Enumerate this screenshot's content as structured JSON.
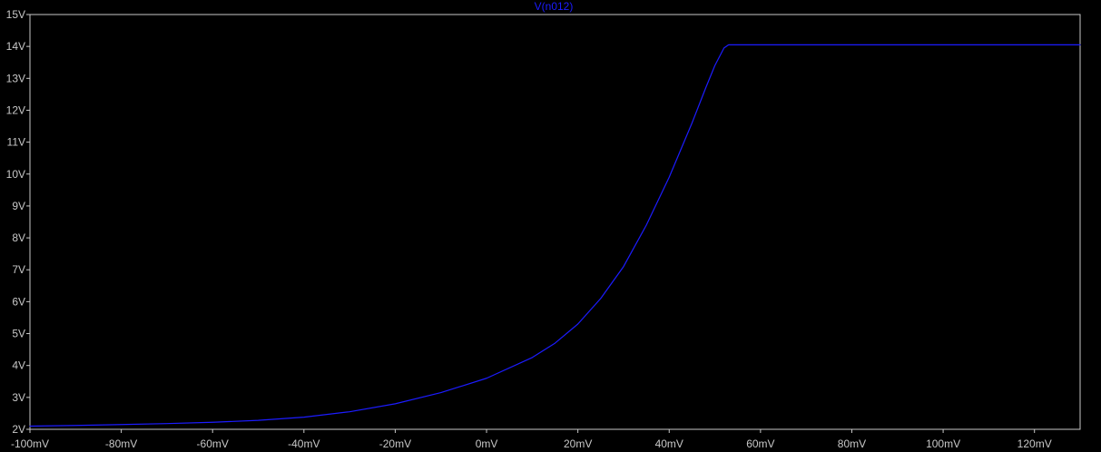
{
  "chart_data": {
    "type": "line",
    "title": "",
    "xlabel": "",
    "ylabel": "",
    "xlim": [
      -100,
      130
    ],
    "ylim": [
      2,
      15
    ],
    "x_unit": "mV",
    "y_unit": "V",
    "x_ticks": [
      -100,
      -80,
      -60,
      -40,
      -20,
      0,
      20,
      40,
      60,
      80,
      100,
      120
    ],
    "x_tick_labels": [
      "-100mV",
      "-80mV",
      "-60mV",
      "-40mV",
      "-20mV",
      "0mV",
      "20mV",
      "40mV",
      "60mV",
      "80mV",
      "100mV",
      "120mV"
    ],
    "y_ticks": [
      2,
      3,
      4,
      5,
      6,
      7,
      8,
      9,
      10,
      11,
      12,
      13,
      14,
      15
    ],
    "y_tick_labels": [
      "2V",
      "3V",
      "4V",
      "5V",
      "6V",
      "7V",
      "8V",
      "9V",
      "10V",
      "11V",
      "12V",
      "13V",
      "14V",
      "15V"
    ],
    "grid": false,
    "background_color": "#000000",
    "frame_color": "#c8c8c8",
    "series": [
      {
        "name": "V(n012)",
        "color": "#1c1cff",
        "x": [
          -100,
          -90,
          -80,
          -70,
          -60,
          -50,
          -40,
          -30,
          -20,
          -10,
          0,
          10,
          15,
          20,
          25,
          30,
          35,
          40,
          45,
          48,
          50,
          52,
          53,
          54,
          55,
          60,
          70,
          80,
          90,
          100,
          110,
          120,
          130
        ],
        "y": [
          2.1,
          2.12,
          2.15,
          2.18,
          2.22,
          2.28,
          2.38,
          2.55,
          2.8,
          3.15,
          3.6,
          4.25,
          4.7,
          5.3,
          6.1,
          7.1,
          8.4,
          9.9,
          11.6,
          12.7,
          13.4,
          13.95,
          14.05,
          14.05,
          14.05,
          14.05,
          14.05,
          14.05,
          14.05,
          14.05,
          14.05,
          14.05,
          14.05
        ]
      }
    ]
  }
}
